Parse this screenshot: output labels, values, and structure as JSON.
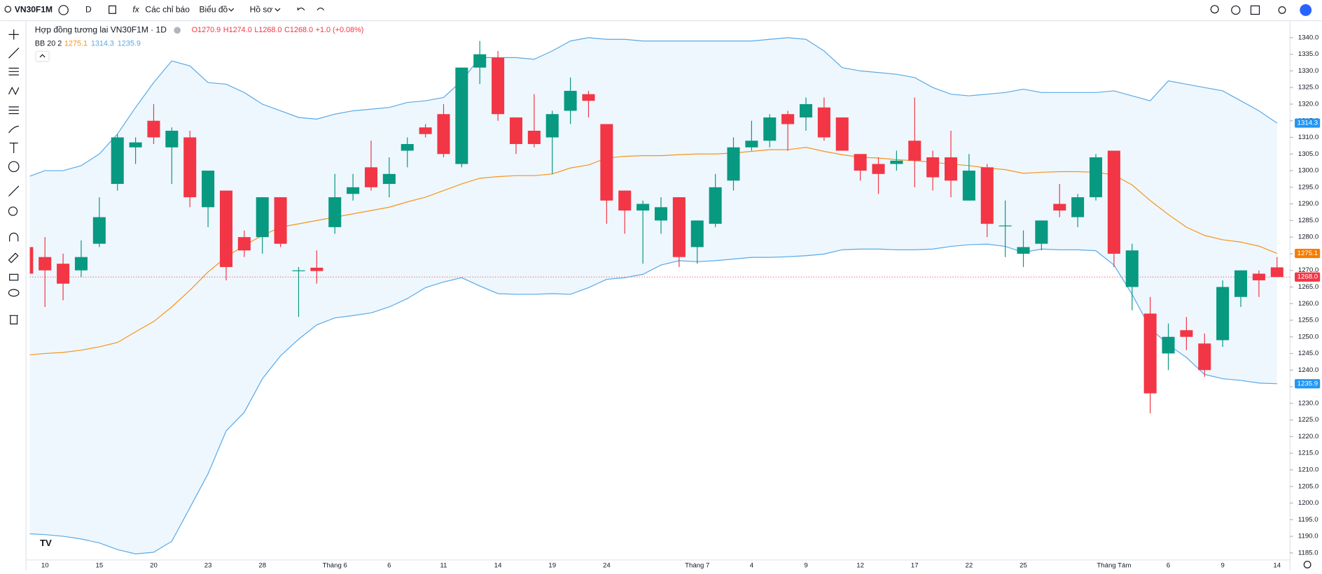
{
  "toolbar": {
    "symbol": "VN30F1M",
    "interval": "D",
    "indicators": "Các chỉ báo",
    "chart_type": "Biểu đồ",
    "profile": "Hồ sơ"
  },
  "chart_data": {
    "type": "candlestick",
    "title": "Hợp đồng tương lai VN30F1M · 1D",
    "ohlc_legend": [
      "O1270.9",
      "H1274.0",
      "L1268.0",
      "C1268.0",
      "+1.0 (+0.08%)"
    ],
    "indicator_legend": {
      "name": "BB 20 2",
      "values": [
        "1275.1",
        "1314.3",
        "1235.9"
      ]
    },
    "categories": [
      null,
      "10",
      null,
      null,
      "15",
      null,
      null,
      "20",
      null,
      null,
      "23",
      null,
      null,
      "28",
      null,
      null,
      null,
      "Tháng 6",
      null,
      null,
      "6",
      null,
      null,
      "11",
      null,
      null,
      "14",
      null,
      null,
      "19",
      null,
      null,
      "24",
      null,
      null,
      null,
      null,
      "Tháng 7",
      null,
      null,
      "4",
      null,
      null,
      "9",
      null,
      null,
      "12",
      null,
      null,
      "17",
      null,
      null,
      "22",
      null,
      null,
      "25",
      null,
      null,
      null,
      null,
      "Tháng Tám",
      null,
      null,
      "6",
      null,
      null,
      "9",
      null,
      null,
      "14"
    ],
    "open": [
      1277,
      1274,
      1272,
      1270,
      1278,
      1296,
      1307,
      1315,
      1307,
      1310,
      1289,
      1294,
      1280,
      1280,
      1292,
      1270,
      1270.8,
      1283,
      1293,
      1301,
      1296,
      1306,
      1313,
      1317,
      1302,
      1331,
      1334,
      1316,
      1312,
      1310,
      1318,
      1323,
      1314,
      1294,
      1288,
      1285,
      1292,
      1277,
      1284,
      1297,
      1307,
      1309,
      1317,
      1316,
      1319,
      1316,
      1305,
      1302,
      1302,
      1309,
      1304,
      1304,
      1291,
      1301,
      1283.5,
      1275,
      1278,
      1290,
      1286,
      1292,
      1306,
      1265,
      1257,
      1245,
      1252,
      1248,
      1249,
      1262,
      1269,
      1270.9
    ],
    "high": [
      1279,
      1280,
      1275,
      1279,
      1292,
      1311,
      1310,
      1320,
      1313,
      1312,
      1300,
      1294,
      1282,
      1292,
      1292,
      1271,
      1276,
      1299,
      1299,
      1309,
      1304,
      1310,
      1314,
      1320,
      1331,
      1339,
      1336,
      1316,
      1323,
      1318,
      1328,
      1324,
      1314,
      1294,
      1291,
      1292,
      1292,
      1285,
      1299,
      1310,
      1315,
      1317,
      1318,
      1322,
      1322,
      1316,
      1305,
      1304,
      1306,
      1322,
      1306,
      1312,
      1305,
      1302,
      1291,
      1282,
      1285,
      1296,
      1293,
      1305,
      1306,
      1278,
      1262,
      1254,
      1256,
      1251,
      1267,
      1270,
      1270,
      1274
    ],
    "low": [
      1268,
      1259,
      1261,
      1268,
      1277,
      1294,
      1302,
      1308,
      1296,
      1289,
      1283,
      1267,
      1274,
      1275,
      1277,
      1256,
      1266,
      1281,
      1291,
      1294,
      1292,
      1301,
      1310,
      1304,
      1301,
      1326,
      1315,
      1305,
      1307,
      1299,
      1314,
      1316,
      1284,
      1281,
      1272,
      1281,
      1271,
      1272,
      1283,
      1294,
      1306,
      1307,
      1306,
      1312,
      1309,
      1306,
      1297,
      1293,
      1300,
      1295,
      1294,
      1292,
      1291,
      1280,
      1274,
      1271,
      1276,
      1286,
      1283,
      1291,
      1271,
      1258,
      1227,
      1240,
      1246,
      1238,
      1247,
      1259,
      1262,
      1268
    ],
    "close": [
      1269,
      1270,
      1266,
      1274,
      1286,
      1310,
      1308.5,
      1310,
      1312,
      1292,
      1300,
      1271,
      1276,
      1292,
      1278,
      1270,
      1269.8,
      1292,
      1295,
      1295,
      1299,
      1308,
      1311,
      1305,
      1331,
      1335,
      1317,
      1308,
      1308,
      1317,
      1324,
      1321,
      1291,
      1288,
      1290,
      1289,
      1274,
      1285,
      1295,
      1307,
      1309,
      1316,
      1314,
      1320,
      1310,
      1306,
      1300,
      1299,
      1303,
      1303,
      1298,
      1297,
      1300,
      1284,
      1283.5,
      1277,
      1285,
      1288,
      1292,
      1304,
      1275,
      1276,
      1233,
      1250,
      1250,
      1240,
      1265,
      1270,
      1267,
      1268
    ],
    "up_color": "#089981",
    "down_color": "#f23645",
    "bands": [
      {
        "name": "upper",
        "color": "#5aa9e6",
        "values": [
          1298,
          1300,
          1300,
          1301.5,
          1305,
          1311,
          1319,
          1326.5,
          1333,
          1331.5,
          1326.5,
          1326,
          1323.5,
          1320,
          1318,
          1316,
          1315.5,
          1317,
          1318,
          1318.5,
          1319,
          1320.5,
          1321,
          1322,
          1327,
          1334,
          1334,
          1334,
          1333.5,
          1336,
          1339,
          1340,
          1339.5,
          1339.5,
          1339,
          1339,
          1339,
          1339,
          1339,
          1339,
          1339,
          1339.5,
          1340,
          1339.5,
          1336,
          1331,
          1330,
          1329.5,
          1329,
          1328,
          1325,
          1323,
          1322.5,
          1323,
          1323.5,
          1324.5,
          1323.5,
          1323.5,
          1323.5,
          1323.5,
          1324,
          1322.5,
          1321,
          1327,
          1326,
          1325,
          1324,
          1321,
          1318,
          1314.3
        ]
      },
      {
        "name": "middle",
        "color": "#f7931a",
        "values": [
          1244.5,
          1245,
          1245.3,
          1246,
          1247,
          1248.3,
          1251.5,
          1254.6,
          1259,
          1264,
          1269.5,
          1274,
          1277.5,
          1280.5,
          1283,
          1284,
          1285,
          1286,
          1287,
          1288,
          1289,
          1290.6,
          1292,
          1294,
          1296,
          1297.7,
          1298.2,
          1298.5,
          1298.5,
          1299,
          1300.8,
          1301.7,
          1303.8,
          1304.3,
          1304.5,
          1304.5,
          1304.8,
          1305,
          1305,
          1305.3,
          1305.8,
          1306.3,
          1306.3,
          1307,
          1305.8,
          1304.8,
          1304,
          1303.8,
          1303.3,
          1303,
          1302.5,
          1302,
          1301.5,
          1300.8,
          1300.3,
          1299.2,
          1299.5,
          1299.7,
          1299.7,
          1299.5,
          1298.7,
          1295.7,
          1291,
          1286.8,
          1283,
          1280.5,
          1279.2,
          1278.5,
          1277.3,
          1275.1
        ]
      },
      {
        "name": "lower",
        "color": "#5aa9e6",
        "values": [
          1190.8,
          1190.5,
          1190,
          1189.2,
          1188,
          1186,
          1184.7,
          1185.2,
          1188.5,
          1198.6,
          1208.8,
          1221.7,
          1227.3,
          1237.4,
          1244.3,
          1249.3,
          1253.6,
          1255.7,
          1256.4,
          1257.2,
          1259,
          1261.5,
          1264.8,
          1266.5,
          1267.8,
          1265.3,
          1263,
          1262.8,
          1262.8,
          1263,
          1262.8,
          1264.8,
          1267.3,
          1267.8,
          1268.8,
          1271.6,
          1272.9,
          1272.6,
          1272.9,
          1273.4,
          1273.9,
          1273.9,
          1274.1,
          1274.4,
          1274.9,
          1276.2,
          1276.4,
          1276.4,
          1276.2,
          1276.2,
          1276.4,
          1277.2,
          1277.7,
          1277.9,
          1277.2,
          1275.4,
          1276.4,
          1276.2,
          1276.2,
          1275.9,
          1271.6,
          1262.8,
          1252.6,
          1247.6,
          1243.8,
          1238.7,
          1237.4,
          1236.9,
          1236.1,
          1235.9
        ]
      }
    ],
    "band_fill": "#e3f2fd",
    "ylim": [
      1183,
      1345
    ],
    "yticks": [
      {
        "value": 1185,
        "label": "1185.0"
      },
      {
        "value": 1190,
        "label": "1190.0"
      },
      {
        "value": 1195,
        "label": "1195.0"
      },
      {
        "value": 1200,
        "label": "1200.0"
      },
      {
        "value": 1205,
        "label": "1205.0"
      },
      {
        "value": 1210,
        "label": "1210.0"
      },
      {
        "value": 1215,
        "label": "1215.0"
      },
      {
        "value": 1220,
        "label": "1220.0"
      },
      {
        "value": 1225,
        "label": "1225.0"
      },
      {
        "value": 1230,
        "label": "1230.0"
      },
      {
        "value": 1235,
        "label": "1235.0"
      },
      {
        "value": 1240,
        "label": "1240.0"
      },
      {
        "value": 1245,
        "label": "1245.0"
      },
      {
        "value": 1250,
        "label": "1250.0"
      },
      {
        "value": 1255,
        "label": "1255.0"
      },
      {
        "value": 1260,
        "label": "1260.0"
      },
      {
        "value": 1265,
        "label": "1265.0"
      },
      {
        "value": 1270,
        "label": "1270.0"
      },
      {
        "value": 1275,
        "label": "1275.0"
      },
      {
        "value": 1280,
        "label": "1280.0"
      },
      {
        "value": 1285,
        "label": "1285.0"
      },
      {
        "value": 1290,
        "label": "1290.0"
      },
      {
        "value": 1295,
        "label": "1295.0"
      },
      {
        "value": 1300,
        "label": "1300.0"
      },
      {
        "value": 1305,
        "label": "1305.0"
      },
      {
        "value": 1310,
        "label": "1310.0"
      },
      {
        "value": 1315,
        "label": "1315.0"
      },
      {
        "value": 1320,
        "label": "1320.0"
      },
      {
        "value": 1325,
        "label": "1325.0"
      },
      {
        "value": 1330,
        "label": "1330.0"
      },
      {
        "value": 1335,
        "label": "1335.0"
      },
      {
        "value": 1340,
        "label": "1340.0"
      }
    ],
    "price_labels": [
      {
        "value": 1314.3,
        "label": "1314.3",
        "color": "#2196f3"
      },
      {
        "value": 1275.1,
        "label": "1275.1",
        "color": "#f57c00"
      },
      {
        "value": 1268,
        "label": "1268.0",
        "color": "#f23645"
      },
      {
        "value": 1235.9,
        "label": "1235.9",
        "color": "#2196f3"
      }
    ],
    "grid": false
  }
}
